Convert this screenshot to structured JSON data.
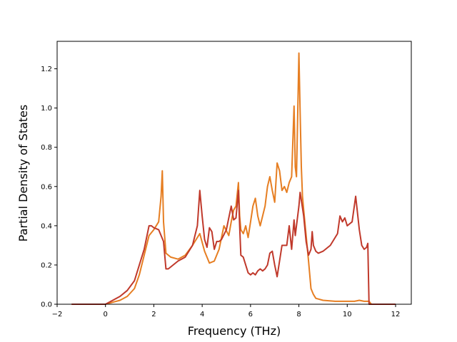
{
  "chart_data": {
    "type": "line",
    "title": "",
    "xlabel": "Frequency (THz)",
    "ylabel": "Partial Density of States",
    "xlim": [
      -2,
      12.65
    ],
    "ylim": [
      0,
      1.34
    ],
    "xticks": [
      -2,
      0,
      2,
      4,
      6,
      8,
      10,
      12
    ],
    "xtick_labels": [
      "−2",
      "0",
      "2",
      "4",
      "6",
      "8",
      "10",
      "12"
    ],
    "yticks": [
      0.0,
      0.2,
      0.4,
      0.6,
      0.8,
      1.0,
      1.2
    ],
    "ytick_labels": [
      "0.0",
      "0.2",
      "0.4",
      "0.6",
      "0.8",
      "1.0",
      "1.2"
    ],
    "grid": false,
    "legend": "none",
    "series": [
      {
        "color": "#e67e22",
        "x": [
          -1.4,
          0.0,
          0.3,
          0.6,
          0.9,
          1.2,
          1.4,
          1.6,
          1.8,
          2.0,
          2.2,
          2.3,
          2.35,
          2.4,
          2.5,
          2.7,
          3.0,
          3.3,
          3.6,
          3.9,
          4.1,
          4.3,
          4.5,
          4.7,
          4.9,
          5.1,
          5.2,
          5.3,
          5.4,
          5.5,
          5.55,
          5.6,
          5.7,
          5.8,
          5.9,
          6.0,
          6.1,
          6.2,
          6.3,
          6.4,
          6.5,
          6.6,
          6.7,
          6.8,
          6.9,
          7.0,
          7.1,
          7.2,
          7.3,
          7.4,
          7.5,
          7.6,
          7.7,
          7.8,
          7.85,
          7.9,
          8.0,
          8.05,
          8.1,
          8.15,
          8.2,
          8.3,
          8.4,
          8.5,
          8.6,
          8.7,
          9.0,
          9.5,
          10.0,
          10.3,
          10.5,
          10.7,
          10.9,
          11.0,
          12.0
        ],
        "y": [
          0.0,
          0.0,
          0.01,
          0.02,
          0.04,
          0.08,
          0.15,
          0.25,
          0.35,
          0.38,
          0.42,
          0.55,
          0.68,
          0.42,
          0.26,
          0.24,
          0.23,
          0.25,
          0.3,
          0.36,
          0.27,
          0.21,
          0.22,
          0.28,
          0.4,
          0.35,
          0.42,
          0.48,
          0.5,
          0.62,
          0.45,
          0.38,
          0.36,
          0.4,
          0.34,
          0.42,
          0.5,
          0.54,
          0.45,
          0.4,
          0.45,
          0.5,
          0.6,
          0.65,
          0.58,
          0.52,
          0.72,
          0.68,
          0.58,
          0.6,
          0.57,
          0.62,
          0.65,
          1.01,
          0.7,
          0.65,
          1.28,
          0.98,
          0.7,
          0.55,
          0.48,
          0.35,
          0.22,
          0.08,
          0.05,
          0.03,
          0.02,
          0.015,
          0.015,
          0.015,
          0.02,
          0.015,
          0.015,
          0.0,
          0.0
        ]
      },
      {
        "color": "#c0392b",
        "x": [
          -1.4,
          0.0,
          0.3,
          0.6,
          0.9,
          1.2,
          1.4,
          1.6,
          1.8,
          1.9,
          2.0,
          2.2,
          2.4,
          2.5,
          2.6,
          2.8,
          3.0,
          3.3,
          3.6,
          3.8,
          3.9,
          4.0,
          4.1,
          4.2,
          4.3,
          4.4,
          4.5,
          4.6,
          4.7,
          4.8,
          5.0,
          5.2,
          5.3,
          5.4,
          5.5,
          5.55,
          5.6,
          5.7,
          5.8,
          5.9,
          6.0,
          6.1,
          6.2,
          6.3,
          6.4,
          6.5,
          6.6,
          6.7,
          6.8,
          6.9,
          7.0,
          7.1,
          7.2,
          7.3,
          7.4,
          7.5,
          7.6,
          7.7,
          7.8,
          7.85,
          7.9,
          8.0,
          8.05,
          8.1,
          8.2,
          8.3,
          8.4,
          8.5,
          8.55,
          8.6,
          8.7,
          8.8,
          9.0,
          9.3,
          9.6,
          9.7,
          9.8,
          9.9,
          10.0,
          10.2,
          10.35,
          10.5,
          10.6,
          10.7,
          10.8,
          10.85,
          10.9,
          11.0,
          12.0
        ],
        "y": [
          0.0,
          0.0,
          0.02,
          0.04,
          0.07,
          0.12,
          0.2,
          0.28,
          0.4,
          0.4,
          0.39,
          0.38,
          0.32,
          0.18,
          0.18,
          0.2,
          0.22,
          0.24,
          0.3,
          0.4,
          0.58,
          0.45,
          0.33,
          0.29,
          0.39,
          0.37,
          0.28,
          0.32,
          0.32,
          0.33,
          0.38,
          0.5,
          0.43,
          0.44,
          0.58,
          0.4,
          0.25,
          0.24,
          0.2,
          0.16,
          0.15,
          0.16,
          0.15,
          0.17,
          0.18,
          0.17,
          0.18,
          0.2,
          0.26,
          0.27,
          0.2,
          0.14,
          0.22,
          0.3,
          0.3,
          0.3,
          0.4,
          0.28,
          0.43,
          0.35,
          0.4,
          0.5,
          0.57,
          0.53,
          0.45,
          0.32,
          0.25,
          0.28,
          0.37,
          0.3,
          0.27,
          0.26,
          0.27,
          0.3,
          0.36,
          0.45,
          0.42,
          0.44,
          0.4,
          0.42,
          0.55,
          0.38,
          0.3,
          0.28,
          0.29,
          0.31,
          0.0,
          0.0,
          0.0
        ]
      }
    ]
  }
}
